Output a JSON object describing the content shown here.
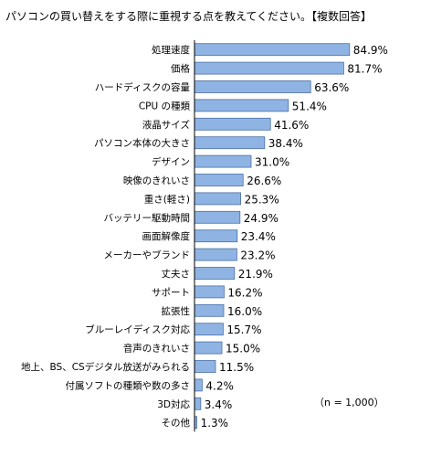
{
  "chart_data": {
    "type": "bar",
    "orientation": "horizontal",
    "title": "パソコンの買い替えをする際に重視する点を教えてください。【複数回答】",
    "note": "（n = 1,000）",
    "unit": "%",
    "xlim": [
      0,
      100
    ],
    "grid": false,
    "bar_color": "#8fb4e3",
    "bar_border_color": "#4a6fa5",
    "categories": [
      "処理速度",
      "価格",
      "ハードディスクの容量",
      "CPU の種類",
      "液晶サイズ",
      "パソコン本体の大きさ",
      "デザイン",
      "映像のきれいさ",
      "重さ(軽さ)",
      "バッテリー駆動時間",
      "画面解像度",
      "メーカーやブランド",
      "丈夫さ",
      "サポート",
      "拡張性",
      "ブルーレイディスク対応",
      "音声のきれいさ",
      "地上、BS、CSデジタル放送がみられる",
      "付属ソフトの種類や数の多さ",
      "3D対応",
      "その他"
    ],
    "values": [
      84.9,
      81.7,
      63.6,
      51.4,
      41.6,
      38.4,
      31.0,
      26.6,
      25.3,
      24.9,
      23.4,
      23.2,
      21.9,
      16.2,
      16.0,
      15.7,
      15.0,
      11.5,
      4.2,
      3.4,
      1.3
    ],
    "value_labels": [
      "84.9%",
      "81.7%",
      "63.6%",
      "51.4%",
      "41.6%",
      "38.4%",
      "31.0%",
      "26.6%",
      "25.3%",
      "24.9%",
      "23.4%",
      "23.2%",
      "21.9%",
      "16.2%",
      "16.0%",
      "15.7%",
      "15.0%",
      "11.5%",
      "4.2%",
      "3.4%",
      "1.3%"
    ]
  }
}
